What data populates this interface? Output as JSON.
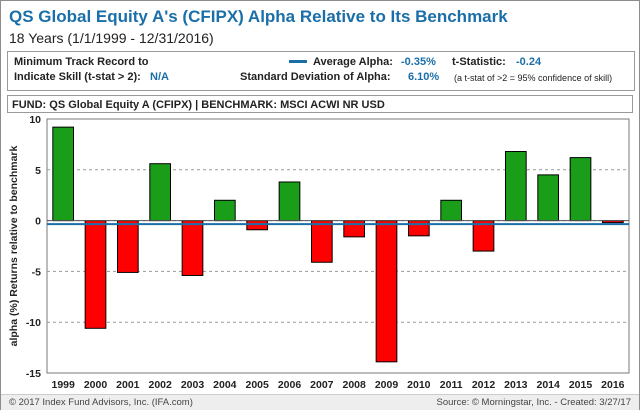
{
  "title": "QS Global Equity A's (CFIPX) Alpha Relative to Its Benchmark",
  "subtitle": "18 Years (1/1/1999 - 12/31/2016)",
  "info": {
    "min_track_label_1": "Minimum Track Record to",
    "min_track_label_2": "Indicate Skill (t-stat > 2):",
    "min_track_value": "N/A",
    "avg_alpha_label": "Average Alpha:",
    "avg_alpha_value": "-0.35%",
    "tstat_label": "t-Statistic:",
    "tstat_value": "-0.24",
    "sd_label": "Standard Deviation of Alpha:",
    "sd_value": "6.10%",
    "tstat_note": "(a t-stat of >2 = 95% confidence of skill)"
  },
  "fund_line": "FUND: QS Global Equity A (CFIPX)  | BENCHMARK: MSCI ACWI NR USD",
  "footer": {
    "left": "© 2017 Index Fund Advisors, Inc. (IFA.com)",
    "right": "Source: © Morningstar, Inc. - Created: 3/27/17"
  },
  "colors": {
    "positive": "#1a9e1a",
    "negative": "#ff0000",
    "average_line": "#1a6fa8",
    "title": "#1a6fa8"
  },
  "chart_data": {
    "type": "bar",
    "ylabel": "alpha (%) Returns relative to benchmark",
    "ylim": [
      -15,
      10
    ],
    "yticks": [
      -15,
      -10,
      -5,
      0,
      5,
      10
    ],
    "grid": true,
    "average_alpha": -0.35,
    "categories": [
      "1999",
      "2000",
      "2001",
      "2002",
      "2003",
      "2004",
      "2005",
      "2006",
      "2007",
      "2008",
      "2009",
      "2010",
      "2011",
      "2012",
      "2013",
      "2014",
      "2015",
      "2016"
    ],
    "values": [
      9.2,
      -10.6,
      -5.1,
      5.6,
      -5.4,
      2.0,
      -0.9,
      3.8,
      -4.1,
      -1.6,
      -13.9,
      -1.5,
      2.0,
      -3.0,
      6.8,
      4.5,
      6.2,
      -0.2
    ]
  }
}
